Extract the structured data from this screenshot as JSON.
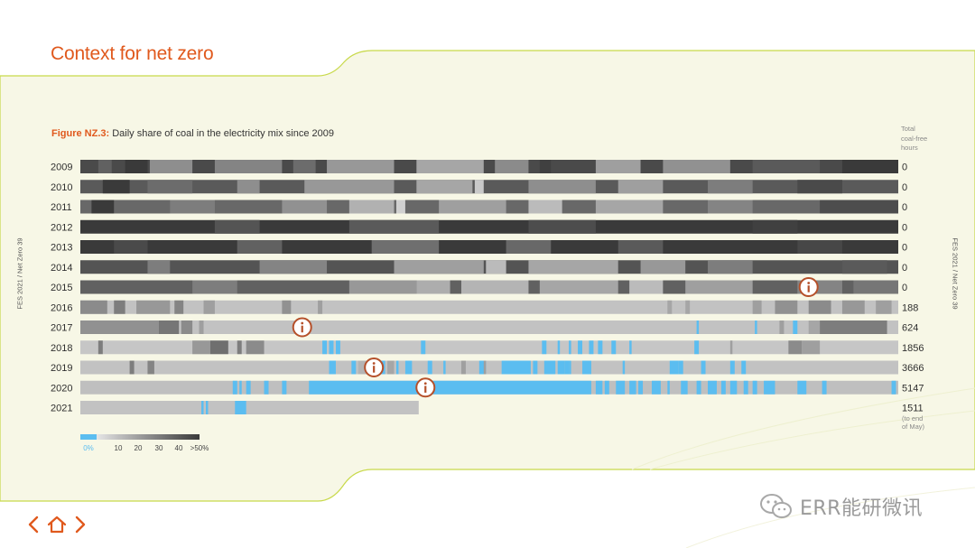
{
  "page": {
    "title": "Context for net zero"
  },
  "side_labels": {
    "left": "FES 2021 / Net Zero 39",
    "right": "FES 2021 / Net Zero 39"
  },
  "figure": {
    "label": "Figure NZ.3:",
    "caption": "Daily share of coal in the electricity mix since 2009"
  },
  "column_header": {
    "line1": "Total",
    "line2": "coal-free",
    "line3": "hours"
  },
  "watermark": {
    "text": "ERR能研微讯",
    "icon": "wechat-logo-icon"
  },
  "nav": {
    "prev_icon": "chevron-left-icon",
    "home_icon": "home-icon",
    "next_icon": "chevron-right-icon"
  },
  "colors": {
    "coal_free": "#5bbdf0",
    "accent": "#e0591d",
    "panel": "#f7f7e6",
    "border": "#c8d94a"
  },
  "chart_data": {
    "type": "heatmap",
    "title": "Daily share of coal in the electricity mix since 2009",
    "x_unit": "day of year",
    "color_scale": {
      "zero_label": "0%",
      "zero_color": "#5bbdf0",
      "stops": [
        0,
        10,
        20,
        30,
        40,
        50
      ],
      "tick_labels": [
        "0%",
        "10",
        "20",
        "30",
        "40",
        ">50%"
      ],
      "colors": [
        "#e6e6e6",
        "#c2c2c2",
        "#9f9f9f",
        "#7d7d7d",
        "#5a5a5a",
        "#3a3a3a"
      ]
    },
    "rows": [
      {
        "year": "2009",
        "coal_free_hours": "0",
        "base": 45,
        "segments": [
          [
            8,
            14,
            38
          ],
          [
            20,
            30,
            60
          ],
          [
            31,
            50,
            25
          ],
          [
            60,
            90,
            28
          ],
          [
            95,
            105,
            35
          ],
          [
            110,
            140,
            22
          ],
          [
            150,
            180,
            18
          ],
          [
            185,
            200,
            26
          ],
          [
            205,
            210,
            48
          ],
          [
            230,
            250,
            20
          ],
          [
            260,
            290,
            24
          ],
          [
            300,
            330,
            40
          ],
          [
            340,
            365,
            52
          ]
        ]
      },
      {
        "year": "2010",
        "coal_free_hours": "0",
        "base": 40,
        "segments": [
          [
            10,
            22,
            55
          ],
          [
            30,
            50,
            35
          ],
          [
            70,
            80,
            25
          ],
          [
            100,
            140,
            22
          ],
          [
            150,
            175,
            18
          ],
          [
            176,
            180,
            8
          ],
          [
            200,
            230,
            25
          ],
          [
            240,
            260,
            20
          ],
          [
            280,
            300,
            30
          ],
          [
            320,
            340,
            45
          ]
        ]
      },
      {
        "year": "2011",
        "coal_free_hours": "0",
        "base": 36,
        "segments": [
          [
            5,
            15,
            50
          ],
          [
            40,
            60,
            30
          ],
          [
            90,
            110,
            24
          ],
          [
            120,
            140,
            15
          ],
          [
            141,
            145,
            6
          ],
          [
            160,
            190,
            20
          ],
          [
            200,
            215,
            12
          ],
          [
            230,
            260,
            18
          ],
          [
            280,
            300,
            28
          ],
          [
            330,
            365,
            44
          ]
        ]
      },
      {
        "year": "2012",
        "coal_free_hours": "0",
        "base": 52,
        "segments": [
          [
            60,
            80,
            42
          ],
          [
            120,
            160,
            40
          ],
          [
            200,
            230,
            44
          ],
          [
            300,
            320,
            48
          ]
        ]
      },
      {
        "year": "2013",
        "coal_free_hours": "0",
        "base": 50,
        "segments": [
          [
            15,
            30,
            45
          ],
          [
            70,
            90,
            38
          ],
          [
            130,
            160,
            34
          ],
          [
            190,
            210,
            36
          ],
          [
            240,
            260,
            40
          ],
          [
            320,
            340,
            46
          ]
        ]
      },
      {
        "year": "2014",
        "coal_free_hours": "0",
        "base": 42,
        "segments": [
          [
            30,
            40,
            30
          ],
          [
            80,
            110,
            28
          ],
          [
            140,
            180,
            20
          ],
          [
            181,
            190,
            12
          ],
          [
            200,
            240,
            18
          ],
          [
            250,
            270,
            22
          ],
          [
            280,
            300,
            30
          ],
          [
            340,
            360,
            40
          ]
        ]
      },
      {
        "year": "2015",
        "coal_free_hours": "0",
        "base": 38,
        "segments": [
          [
            50,
            70,
            30
          ],
          [
            120,
            150,
            22
          ],
          [
            150,
            165,
            16
          ],
          [
            170,
            200,
            14
          ],
          [
            205,
            240,
            18
          ],
          [
            245,
            260,
            12
          ],
          [
            270,
            300,
            20
          ],
          [
            320,
            340,
            28
          ],
          [
            345,
            365,
            32
          ]
        ]
      },
      {
        "year": "2016",
        "coal_free_hours": "188",
        "base": 10,
        "segments": [
          [
            0,
            12,
            26
          ],
          [
            15,
            20,
            30
          ],
          [
            25,
            40,
            22
          ],
          [
            42,
            46,
            28
          ],
          [
            55,
            60,
            20
          ],
          [
            90,
            94,
            24
          ],
          [
            106,
            108,
            20
          ],
          [
            262,
            264,
            18
          ],
          [
            270,
            272,
            18
          ],
          [
            300,
            304,
            20
          ],
          [
            310,
            320,
            24
          ],
          [
            325,
            335,
            26
          ],
          [
            340,
            350,
            22
          ],
          [
            355,
            362,
            20
          ]
        ]
      },
      {
        "year": "2017",
        "coal_free_hours": "624",
        "base": 10,
        "segments": [
          [
            0,
            35,
            24
          ],
          [
            35,
            44,
            32
          ],
          [
            45,
            50,
            26
          ],
          [
            53,
            55,
            20
          ],
          [
            275,
            276,
            0
          ],
          [
            301,
            302,
            0
          ],
          [
            312,
            314,
            20
          ],
          [
            318,
            320,
            0
          ],
          [
            325,
            330,
            18
          ],
          [
            330,
            360,
            30
          ]
        ]
      },
      {
        "year": "2018",
        "coal_free_hours": "1856",
        "base": 9,
        "segments": [
          [
            8,
            10,
            30
          ],
          [
            50,
            58,
            22
          ],
          [
            58,
            66,
            34
          ],
          [
            70,
            72,
            30
          ],
          [
            74,
            82,
            26
          ],
          [
            108,
            110,
            0
          ],
          [
            111,
            113,
            0
          ],
          [
            114,
            116,
            0
          ],
          [
            152,
            154,
            0
          ],
          [
            206,
            208,
            0
          ],
          [
            213,
            214,
            0
          ],
          [
            218,
            219,
            0
          ],
          [
            222,
            224,
            0
          ],
          [
            227,
            229,
            0
          ],
          [
            231,
            233,
            0
          ],
          [
            237,
            239,
            0
          ],
          [
            245,
            246,
            0
          ],
          [
            274,
            276,
            0
          ],
          [
            290,
            291,
            20
          ],
          [
            316,
            322,
            26
          ],
          [
            322,
            330,
            20
          ]
        ]
      },
      {
        "year": "2019",
        "coal_free_hours": "3666",
        "base": 10,
        "segments": [
          [
            22,
            24,
            30
          ],
          [
            30,
            33,
            28
          ],
          [
            111,
            114,
            0
          ],
          [
            121,
            123,
            0
          ],
          [
            124,
            128,
            14
          ],
          [
            129,
            136,
            0
          ],
          [
            137,
            140,
            18
          ],
          [
            141,
            142,
            0
          ],
          [
            145,
            148,
            0
          ],
          [
            155,
            157,
            0
          ],
          [
            162,
            163,
            0
          ],
          [
            170,
            172,
            20
          ],
          [
            178,
            181,
            0
          ],
          [
            180,
            181,
            20
          ],
          [
            188,
            201,
            0
          ],
          [
            202,
            204,
            0
          ],
          [
            207,
            212,
            0
          ],
          [
            213,
            216,
            0
          ],
          [
            216,
            218,
            0
          ],
          [
            218,
            219,
            0
          ],
          [
            224,
            228,
            0
          ],
          [
            242,
            243,
            0
          ],
          [
            263,
            267,
            0
          ],
          [
            267,
            269,
            0
          ],
          [
            277,
            279,
            0
          ],
          [
            290,
            292,
            0
          ],
          [
            295,
            297,
            0
          ]
        ]
      },
      {
        "year": "2020",
        "coal_free_hours": "5147",
        "base": 11,
        "segments": [
          [
            68,
            70,
            0
          ],
          [
            71,
            72,
            0
          ],
          [
            74,
            76,
            0
          ],
          [
            82,
            84,
            0
          ],
          [
            90,
            92,
            0
          ],
          [
            102,
            228,
            0
          ],
          [
            230,
            233,
            0
          ],
          [
            234,
            236,
            0
          ],
          [
            239,
            243,
            0
          ],
          [
            245,
            248,
            0
          ],
          [
            249,
            251,
            0
          ],
          [
            255,
            259,
            0
          ],
          [
            262,
            263,
            0
          ],
          [
            268,
            271,
            0
          ],
          [
            275,
            277,
            0
          ],
          [
            280,
            284,
            0
          ],
          [
            286,
            288,
            0
          ],
          [
            290,
            293,
            0
          ],
          [
            296,
            298,
            0
          ],
          [
            300,
            302,
            0
          ],
          [
            305,
            310,
            0
          ],
          [
            320,
            324,
            0
          ],
          [
            331,
            333,
            0
          ],
          [
            362,
            364,
            0
          ]
        ]
      },
      {
        "year": "2021",
        "coal_free_hours": "1511",
        "note_line1": "(to end",
        "note_line2": "of May)",
        "base": 10,
        "segments": [
          [
            54,
            55,
            0
          ],
          [
            56,
            57,
            0
          ],
          [
            69,
            74,
            0
          ]
        ]
      }
    ]
  }
}
